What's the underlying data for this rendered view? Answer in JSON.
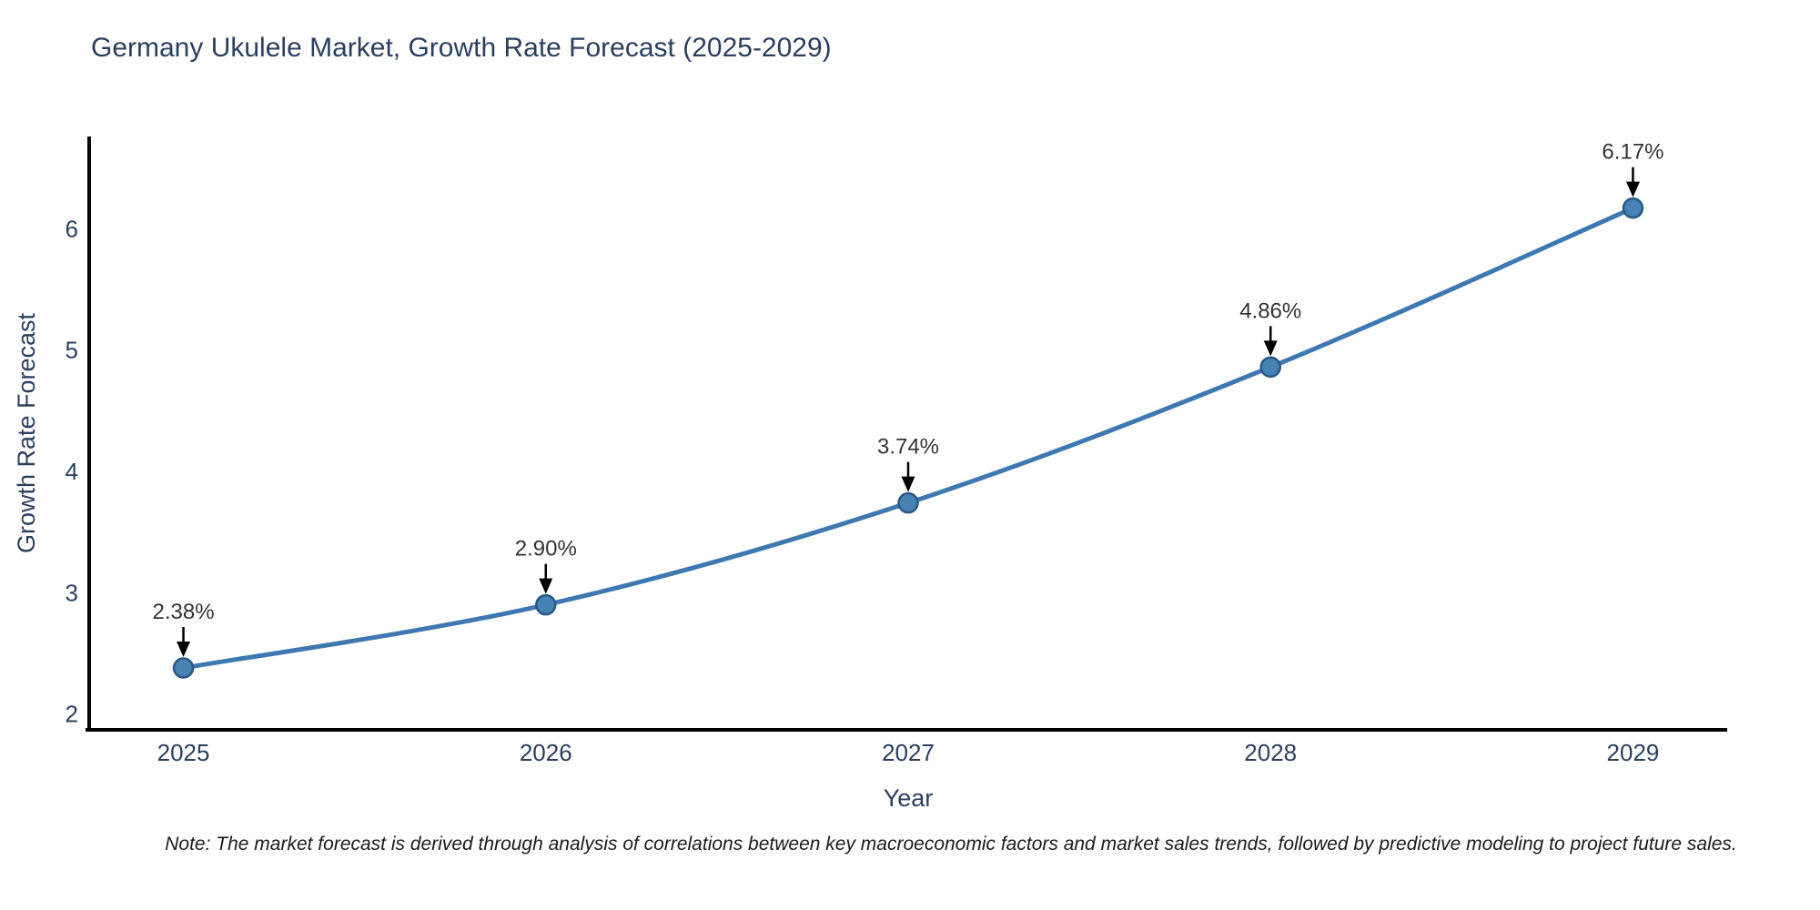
{
  "title": "Germany Ukulele Market, Growth Rate Forecast (2025-2029)",
  "note": "Note: The market forecast is derived through analysis of correlations between key macroeconomic factors and market sales trends, followed by predictive modeling to project future sales.",
  "colors": {
    "title_text": "#2a3f5f",
    "tick_text": "#2a3f5f",
    "annotation_text": "#333333",
    "line": "#3e78b0",
    "marker_fill": "#4682b4",
    "marker_edge": "#2a5784",
    "axis_line": "#000000",
    "arrow": "#000000",
    "background": "#ffffff"
  },
  "chart_data": {
    "type": "line",
    "title": "Germany Ukulele Market, Growth Rate Forecast (2025-2029)",
    "xlabel": "Year",
    "ylabel": "Growth Rate Forecast",
    "x": [
      2025,
      2026,
      2027,
      2028,
      2029
    ],
    "values": [
      2.38,
      2.9,
      3.74,
      4.86,
      6.17
    ],
    "point_labels": [
      "2.38%",
      "2.90%",
      "3.74%",
      "4.86%",
      "6.17%"
    ],
    "yticks": [
      2,
      3,
      4,
      5,
      6
    ],
    "xlim": [
      2024.74,
      2029.26
    ],
    "ylim": [
      1.87,
      6.76
    ],
    "grid": false,
    "legend": "none",
    "line_shape": "spline",
    "annotation_style": "value label with down arrow to marker"
  }
}
